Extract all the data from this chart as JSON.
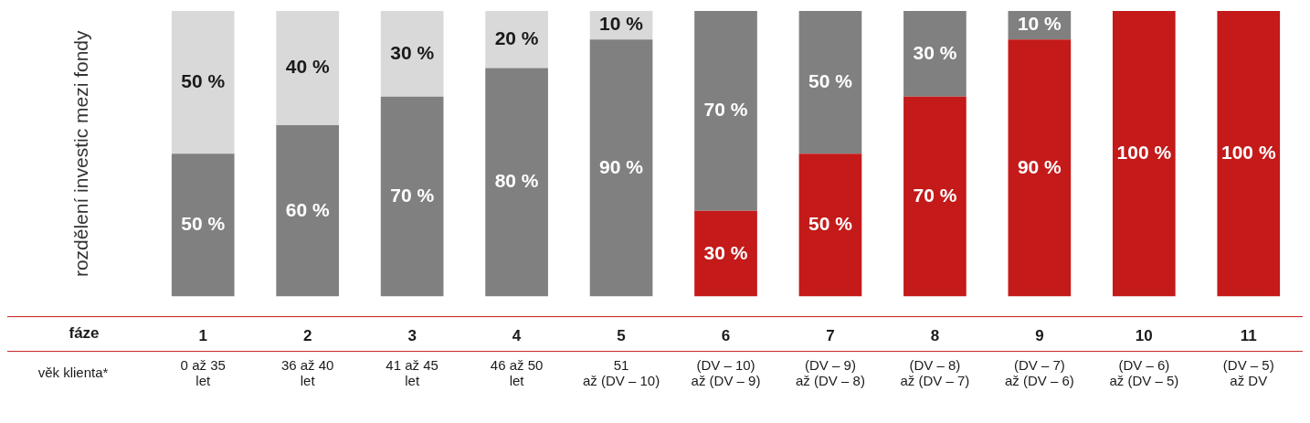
{
  "chart_data": {
    "type": "bar",
    "stacked": true,
    "ylabel": "rozdělení investic mezi fondy",
    "categories": [
      "1",
      "2",
      "3",
      "4",
      "5",
      "6",
      "7",
      "8",
      "9",
      "10",
      "11"
    ],
    "ylim": [
      0,
      100
    ],
    "grid": false,
    "legend": false,
    "series": [
      {
        "color": "#c41a1a",
        "values": [
          null,
          null,
          null,
          null,
          null,
          30,
          50,
          70,
          90,
          100,
          100
        ],
        "value_labels": [
          null,
          null,
          null,
          null,
          null,
          "30 %",
          "50 %",
          "70 %",
          "90 %",
          "100 %",
          "100 %"
        ]
      },
      {
        "color": "#808080",
        "values": [
          50,
          60,
          70,
          80,
          90,
          70,
          50,
          30,
          10,
          null,
          null
        ],
        "value_labels": [
          "50 %",
          "60 %",
          "70 %",
          "80 %",
          "90 %",
          "70 %",
          "50 %",
          "30 %",
          "10 %",
          null,
          null
        ]
      },
      {
        "color": "#d9d9d9",
        "values": [
          50,
          40,
          30,
          20,
          10,
          null,
          null,
          null,
          null,
          null,
          null
        ],
        "value_labels": [
          "50 %",
          "40 %",
          "30 %",
          "20 %",
          "10 %",
          null,
          null,
          null,
          null,
          null,
          null
        ]
      }
    ],
    "annotations": [
      "fáze",
      "věk klienta*",
      "0 až 35\nlet",
      "36 až 40\nlet",
      "41 až 45\nlet",
      "46 až 50\nlet",
      "51\naž (DV – 10)",
      "(DV – 10)\naž (DV – 9)",
      "(DV – 9)\naž (DV – 8)",
      "(DV – 8)\naž (DV – 7)",
      "(DV – 7)\naž (DV – 6)",
      "(DV – 6)\naž (DV – 5)",
      "(DV – 5)\naž DV"
    ]
  }
}
